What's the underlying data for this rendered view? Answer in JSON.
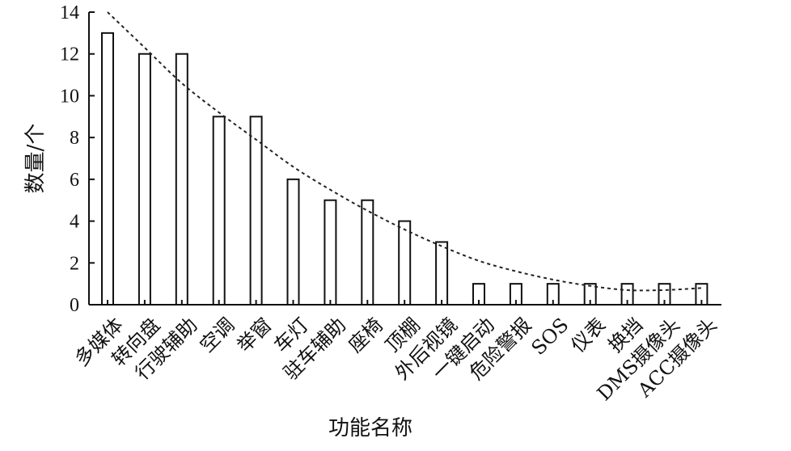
{
  "chart_data": {
    "type": "bar",
    "title": "",
    "xlabel": "功能名称",
    "ylabel": "数量/个",
    "ylim": [
      0,
      14
    ],
    "yticks": [
      0,
      2,
      4,
      6,
      8,
      10,
      12,
      14
    ],
    "grid": false,
    "legend": "none",
    "categories": [
      "多媒体",
      "转向盘",
      "行驶辅助",
      "空调",
      "举窗",
      "车灯",
      "驻车辅助",
      "座椅",
      "顶棚",
      "外后视镜",
      "一键启动",
      "危险警报",
      "SOS",
      "仪表",
      "换挡",
      "DMS摄像头",
      "ACC摄像头"
    ],
    "series": [
      {
        "values": [
          13,
          12,
          12,
          9,
          9,
          6,
          5,
          5,
          4,
          3,
          1,
          1,
          1,
          1,
          1,
          1,
          1
        ]
      }
    ],
    "trendline": {
      "style": "dotted",
      "values": [
        14,
        12.3,
        10.6,
        9.2,
        7.9,
        6.6,
        5.5,
        4.5,
        3.6,
        2.8,
        2.1,
        1.6,
        1.2,
        0.9,
        0.7,
        0.7,
        0.8
      ]
    },
    "colors": {
      "bar_fill": "#ffffff",
      "bar_stroke": "#111111",
      "axis": "#111111",
      "trendline": "#222222"
    }
  }
}
